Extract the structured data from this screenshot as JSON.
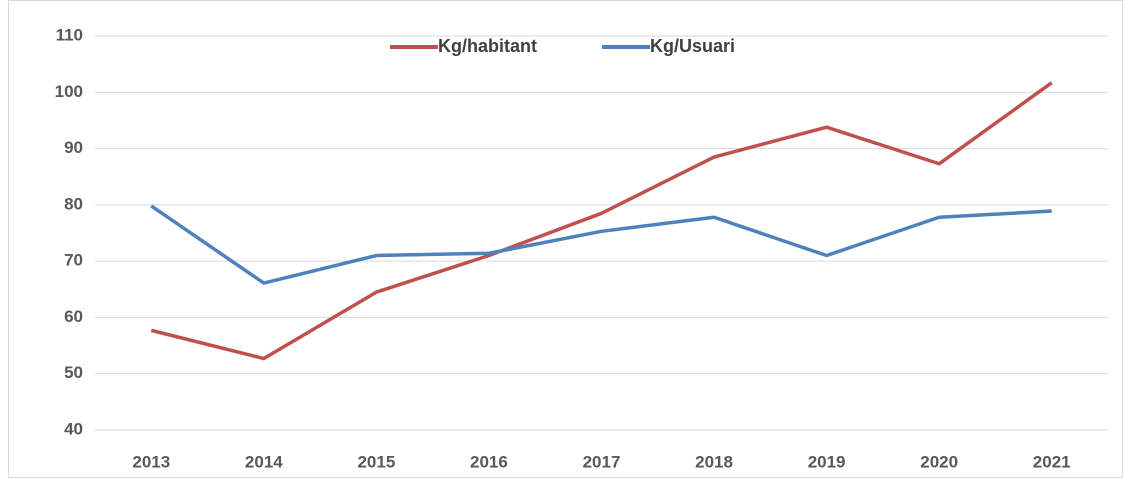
{
  "chart_data": {
    "type": "line",
    "categories": [
      "2013",
      "2014",
      "2015",
      "2016",
      "2017",
      "2018",
      "2019",
      "2020",
      "2021"
    ],
    "series": [
      {
        "name": "Kg/habitant",
        "color": "#c0504d",
        "values": [
          57.7,
          52.7,
          64.5,
          71,
          78.5,
          88.5,
          93.8,
          87.3,
          101.7
        ]
      },
      {
        "name": "Kg/Usuari",
        "color": "#4f81bd",
        "values": [
          79.8,
          66.1,
          71,
          71.4,
          75.3,
          77.8,
          71,
          77.8,
          78.9
        ]
      }
    ],
    "ylim": [
      40,
      110
    ],
    "yticks": [
      40,
      50,
      60,
      70,
      80,
      90,
      100,
      110
    ],
    "grid": true,
    "legend": "top"
  }
}
